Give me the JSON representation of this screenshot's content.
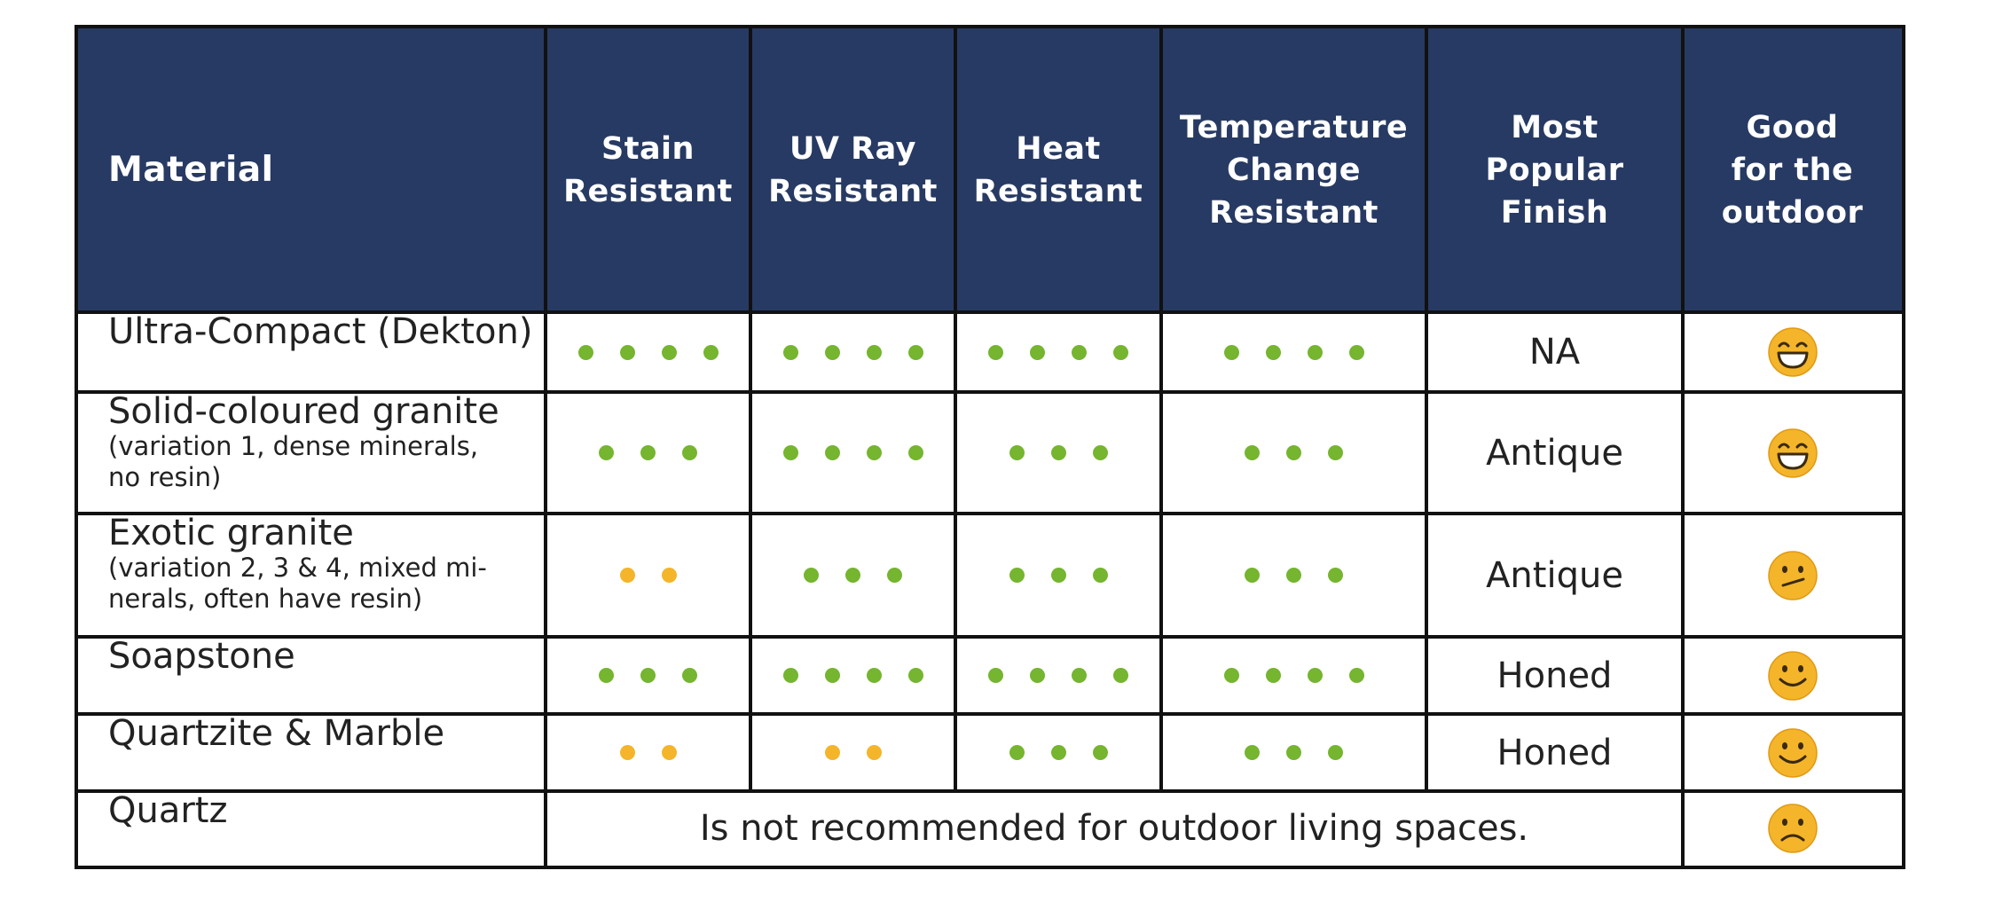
{
  "colors": {
    "header_bg": "#273a63",
    "header_text": "#ffffff",
    "green": "#75b52f",
    "orange": "#f4b52a",
    "face": "#f4b52a",
    "border": "#111111"
  },
  "headers": [
    {
      "key": "material",
      "label": "Material"
    },
    {
      "key": "stain",
      "label": "Stain\nResistant"
    },
    {
      "key": "uv",
      "label": "UV Ray\nResistant"
    },
    {
      "key": "heat",
      "label": "Heat\nResistant"
    },
    {
      "key": "temp",
      "label": "Temperature\nChange\nResistant"
    },
    {
      "key": "finish",
      "label": "Most\nPopular\nFinish"
    },
    {
      "key": "outdoor",
      "label": "Good\nfor the\noutdoor"
    }
  ],
  "rows": [
    {
      "name": "Ultra-Compact (Dekton)",
      "note": "",
      "stain": {
        "count": 4,
        "color": "green"
      },
      "uv": {
        "count": 4,
        "color": "green"
      },
      "heat": {
        "count": 4,
        "color": "green"
      },
      "temp": {
        "count": 4,
        "color": "green"
      },
      "finish": "NA",
      "outdoor_icon": "laughing-face-icon"
    },
    {
      "name": "Solid-coloured granite",
      "note": "(variation 1, dense minerals, no resin)",
      "stain": {
        "count": 3,
        "color": "green"
      },
      "uv": {
        "count": 4,
        "color": "green"
      },
      "heat": {
        "count": 3,
        "color": "green"
      },
      "temp": {
        "count": 3,
        "color": "green"
      },
      "finish": "Antique",
      "outdoor_icon": "laughing-face-icon"
    },
    {
      "name": "Exotic granite",
      "note": "(variation 2, 3 & 4, mixed mi-nerals, often have resin)",
      "stain": {
        "count": 2,
        "color": "orange"
      },
      "uv": {
        "count": 3,
        "color": "green"
      },
      "heat": {
        "count": 3,
        "color": "green"
      },
      "temp": {
        "count": 3,
        "color": "green"
      },
      "finish": "Antique",
      "outdoor_icon": "skeptical-face-icon"
    },
    {
      "name": "Soapstone",
      "note": "",
      "stain": {
        "count": 3,
        "color": "green"
      },
      "uv": {
        "count": 4,
        "color": "green"
      },
      "heat": {
        "count": 4,
        "color": "green"
      },
      "temp": {
        "count": 4,
        "color": "green"
      },
      "finish": "Honed",
      "outdoor_icon": "smiling-face-icon"
    },
    {
      "name": "Quartzite & Marble",
      "note": "",
      "stain": {
        "count": 2,
        "color": "orange"
      },
      "uv": {
        "count": 2,
        "color": "orange"
      },
      "heat": {
        "count": 3,
        "color": "green"
      },
      "temp": {
        "count": 3,
        "color": "green"
      },
      "finish": "Honed",
      "outdoor_icon": "smiling-face-icon"
    },
    {
      "name": "Quartz",
      "note": "",
      "merged_text": "Is not recommended for outdoor living spaces.",
      "outdoor_icon": "frowning-face-icon"
    }
  ]
}
